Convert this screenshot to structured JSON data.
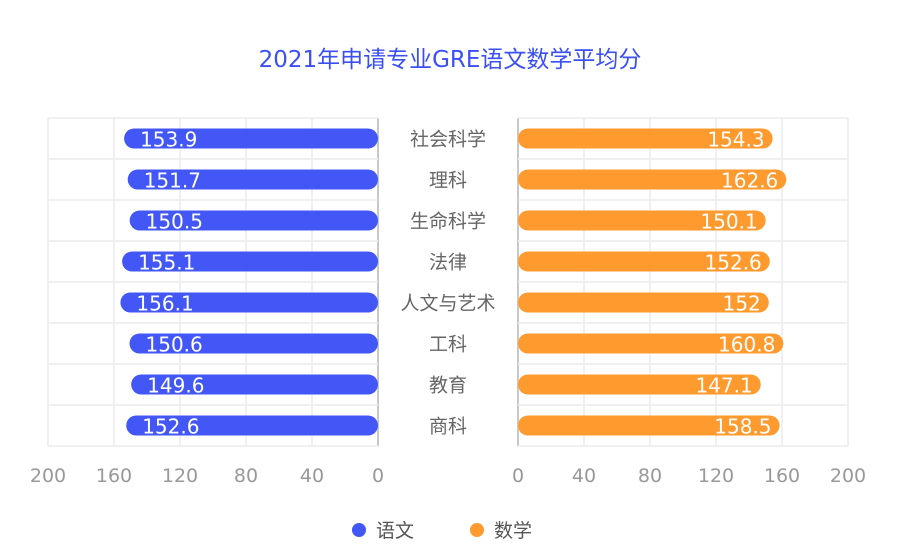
{
  "chart_data": {
    "type": "bar",
    "orientation": "horizontal-butterfly",
    "title": "2021年申请专业GRE语文数学平均分",
    "categories": [
      "社会科学",
      "理科",
      "生命科学",
      "法律",
      "人文与艺术",
      "工科",
      "教育",
      "商科"
    ],
    "series": [
      {
        "name": "语文",
        "color": "#4257f5",
        "values": [
          153.9,
          151.7,
          150.5,
          155.1,
          156.1,
          150.6,
          149.6,
          152.6
        ]
      },
      {
        "name": "数学",
        "color": "#ff9a2e",
        "values": [
          154.3,
          162.6,
          150.1,
          152.6,
          152,
          160.8,
          147.1,
          158.5
        ]
      }
    ],
    "xlim": [
      0,
      200
    ],
    "ticks": [
      "0",
      "40",
      "80",
      "120",
      "160",
      "200"
    ],
    "grid": true,
    "legend": "bottom"
  }
}
